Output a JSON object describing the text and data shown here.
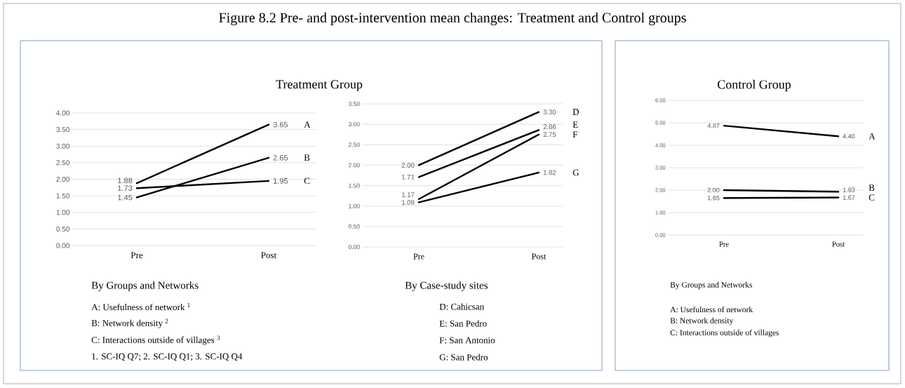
{
  "chart_data": [
    {
      "type": "line",
      "title": "Figure 8.2    Pre- and post-intervention mean changes: Treatment and Control groups",
      "subtitle": "Treatment Group",
      "categories": [
        "Pre",
        "Post"
      ],
      "series": [
        {
          "name": "A",
          "color": "#000000",
          "values": [
            1.88,
            3.65
          ],
          "value_labels": [
            "1.88",
            "3.65"
          ]
        },
        {
          "name": "B",
          "color": "#000000",
          "values": [
            1.45,
            2.65
          ],
          "value_labels": [
            "1.45",
            "2.65"
          ]
        },
        {
          "name": "C",
          "color": "#000000",
          "values": [
            1.73,
            1.95
          ],
          "value_labels": [
            "1.73",
            "1.95"
          ]
        }
      ],
      "ylim": [
        0,
        4
      ],
      "yticks": [
        {
          "value": 0,
          "label": "0.00"
        },
        {
          "value": 0.5,
          "label": "0.50"
        },
        {
          "value": 1,
          "label": "1.00"
        },
        {
          "value": 1.5,
          "label": "1.50"
        },
        {
          "value": 2,
          "label": "2.00"
        },
        {
          "value": 2.5,
          "label": "2.50"
        },
        {
          "value": 3,
          "label": "3.00"
        },
        {
          "value": 3.5,
          "label": "3.50"
        },
        {
          "value": 4,
          "label": "4.00"
        }
      ],
      "grid": "y",
      "annotations": [
        "By Groups and Networks",
        "A: Usefulness of network $^{1}$",
        "B: Network density $^{2}$",
        "C: Interactions outside of villages $^{3}$",
        "1. SC-IQ Q7; 2. SC-IQ Q1; 3. SC-IQ Q4"
      ]
    },
    {
      "type": "line",
      "categories": [
        "Pre",
        "Post"
      ],
      "series": [
        {
          "name": "D",
          "color": "#000000",
          "values": [
            2.0,
            3.3
          ],
          "value_labels": [
            "2.00",
            "3.30"
          ]
        },
        {
          "name": "E",
          "color": "#000000",
          "values": [
            1.71,
            2.86
          ],
          "value_labels": [
            "1.71",
            "2.86"
          ]
        },
        {
          "name": "F",
          "color": "#000000",
          "values": [
            1.17,
            2.75
          ],
          "value_labels": [
            "1.17",
            "2.75"
          ]
        },
        {
          "name": "G",
          "color": "#000000",
          "values": [
            1.09,
            1.82
          ],
          "value_labels": [
            "1.09",
            "1.82"
          ]
        }
      ],
      "ylim": [
        0,
        3.5
      ],
      "yticks": [
        {
          "value": 0,
          "label": "0.00"
        },
        {
          "value": 0.5,
          "label": "0.50"
        },
        {
          "value": 1,
          "label": "1.00"
        },
        {
          "value": 1.5,
          "label": "1.50"
        },
        {
          "value": 2,
          "label": "2.00"
        },
        {
          "value": 2.5,
          "label": "2.50"
        },
        {
          "value": 3,
          "label": "3.00"
        },
        {
          "value": 3.5,
          "label": "3.50"
        }
      ],
      "grid": "y",
      "annotations": [
        "By Case-study sites",
        "D: Cahicsan",
        "E: San Pedro",
        "F: San Antonio",
        "G: San Pedro"
      ]
    },
    {
      "type": "line",
      "title": "Control Group",
      "categories": [
        "Pre",
        "Post"
      ],
      "series": [
        {
          "name": "A",
          "color": "#000000",
          "values": [
            4.87,
            4.4
          ],
          "value_labels": [
            "4.87",
            "4.40"
          ]
        },
        {
          "name": "B",
          "color": "#000000",
          "values": [
            2.0,
            1.93
          ],
          "value_labels": [
            "2.00",
            "1.93"
          ]
        },
        {
          "name": "C",
          "color": "#000000",
          "values": [
            1.65,
            1.67
          ],
          "value_labels": [
            "1.65",
            "1.67"
          ]
        }
      ],
      "ylim": [
        0,
        6
      ],
      "yticks": [
        {
          "value": 0,
          "label": "0.00"
        },
        {
          "value": 1,
          "label": "1.00"
        },
        {
          "value": 2,
          "label": "2.00"
        },
        {
          "value": 3,
          "label": "3.00"
        },
        {
          "value": 4,
          "label": "4.00"
        },
        {
          "value": 5,
          "label": "5.00"
        },
        {
          "value": 6,
          "label": "6.00"
        }
      ],
      "grid": "y",
      "annotations": [
        "By Groups and Networks",
        "A: Usefulness of network",
        "B: Network density",
        "C: Interactions outside of villages"
      ]
    }
  ]
}
